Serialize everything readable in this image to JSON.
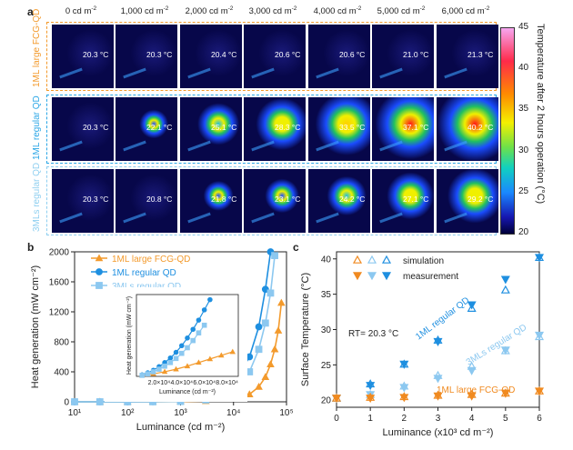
{
  "panel_a": {
    "label": "a",
    "columns": [
      "0 cd m",
      "1,000 cd m",
      "2,000 cd m",
      "3,000 cd m",
      "4,000 cd m",
      "5,000 cd m",
      "6,000 cd m"
    ],
    "column_unit_exp": "-2",
    "rows": [
      {
        "label": "1ML large FCG-QD",
        "color": "#f39a2c",
        "temps": [
          "20.3 °C",
          "20.3 °C",
          "20.4 °C",
          "20.6 °C",
          "20.6 °C",
          "21.0 °C",
          "21.3 °C"
        ]
      },
      {
        "label": "1ML regular QD",
        "color": "#2aa6e6",
        "temps": [
          "20.3 °C",
          "22.1 °C",
          "25.1 °C",
          "28.3 °C",
          "33.5 °C",
          "37.1 °C",
          "40.2 °C"
        ]
      },
      {
        "label": "3MLs regular QD",
        "color": "#8fcff0",
        "temps": [
          "20.3 °C",
          "20.8 °C",
          "21.8 °C",
          "23.1 °C",
          "24.2 °C",
          "27.1 °C",
          "29.2 °C"
        ]
      }
    ],
    "colorbar": {
      "ticks": [
        "45",
        "40",
        "35",
        "30",
        "25",
        "20"
      ],
      "label": "Temperature after 2 hours operation (°C)"
    }
  },
  "panel_b": {
    "label": "b",
    "legend": [
      "1ML   large FCG-QD",
      "1ML   regular QD",
      "3MLs regular QD"
    ],
    "inset": {
      "xticks": [
        "2.0×10⁴",
        "4.0×10⁴",
        "6.0×10⁴",
        "8.0×10⁴"
      ],
      "xlabel": "Luminance (cd m⁻²)",
      "ylabel": "Heat generation (mW cm⁻²)"
    }
  },
  "panel_c": {
    "label": "c",
    "legend": [
      "simulation",
      "measurement"
    ],
    "annotation": "RT= 20.3 °C",
    "series_labels": [
      "1ML regular QD",
      "3MLs regular QD",
      "1ML large FCG-QD"
    ]
  },
  "chart_data": [
    {
      "type": "line",
      "xlabel": "Luminance (cd m⁻²)",
      "ylabel": "Heat generation (mW cm⁻²)",
      "xscale": "log",
      "xlim": [
        10,
        100000
      ],
      "ylim": [
        0,
        2000
      ],
      "xticks": [
        "10¹",
        "10²",
        "10³",
        "10⁴",
        "10⁵"
      ],
      "yticks": [
        "0",
        "400",
        "800",
        "1200",
        "1600",
        "2000"
      ],
      "legend_position": "top-left",
      "series": [
        {
          "name": "1ML   large FCG-QD",
          "color": "#f39a2c",
          "marker": "triangle",
          "x": [
            10,
            30,
            100,
            300,
            1000,
            3000,
            10000,
            20000,
            30000,
            40000,
            50000,
            60000,
            70000,
            80000
          ],
          "y": [
            0,
            0,
            0,
            1,
            3,
            10,
            40,
            100,
            200,
            330,
            500,
            700,
            950,
            1320
          ]
        },
        {
          "name": "1ML   regular QD",
          "color": "#1e8fe0",
          "marker": "circle",
          "x": [
            10,
            30,
            100,
            300,
            1000,
            3000,
            10000,
            20000,
            30000,
            40000,
            50000
          ],
          "y": [
            0,
            0,
            0,
            2,
            8,
            40,
            250,
            600,
            1000,
            1500,
            2000
          ]
        },
        {
          "name": "3MLs regular QD",
          "color": "#8cc8f0",
          "marker": "square",
          "x": [
            10,
            30,
            100,
            300,
            1000,
            3000,
            10000,
            20000,
            30000,
            40000,
            50000,
            60000
          ],
          "y": [
            0,
            0,
            0,
            1,
            5,
            25,
            150,
            400,
            700,
            1050,
            1450,
            1950
          ]
        }
      ]
    },
    {
      "type": "line",
      "role": "inset",
      "xlabel": "Luminance (cd m⁻²)",
      "ylabel": "Heat generation (mW cm⁻²)",
      "xlim": [
        0,
        90000
      ],
      "series": [
        {
          "color": "#f39a2c",
          "x": [
            5000,
            15000,
            25000,
            35000,
            45000,
            55000,
            65000,
            75000,
            85000
          ],
          "y": [
            20,
            50,
            90,
            140,
            200,
            270,
            340,
            410,
            480
          ]
        },
        {
          "color": "#1e8fe0",
          "x": [
            5000,
            10000,
            15000,
            20000,
            25000,
            30000,
            35000,
            40000,
            45000,
            50000,
            55000,
            60000,
            65000
          ],
          "y": [
            30,
            70,
            120,
            190,
            270,
            360,
            470,
            600,
            750,
            920,
            1100,
            1300,
            1500
          ]
        },
        {
          "color": "#8cc8f0",
          "x": [
            5000,
            10000,
            15000,
            20000,
            25000,
            30000,
            35000,
            40000,
            45000,
            50000,
            55000,
            60000
          ],
          "y": [
            20,
            50,
            90,
            140,
            200,
            270,
            350,
            450,
            560,
            700,
            850,
            1000
          ]
        }
      ]
    },
    {
      "type": "scatter",
      "xlabel": "Luminance (x10³ cd m⁻²)",
      "ylabel": "Surface Temperature (°C)",
      "xlim": [
        0,
        6
      ],
      "ylim": [
        19,
        41
      ],
      "xticks": [
        "0",
        "1",
        "2",
        "3",
        "4",
        "5",
        "6"
      ],
      "yticks": [
        "20",
        "25",
        "30",
        "35",
        "40"
      ],
      "x": [
        0,
        1,
        2,
        3,
        4,
        5,
        6
      ],
      "series": [
        {
          "name": "1ML regular QD",
          "color": "#1e8fe0",
          "simulation": [
            20.3,
            22.3,
            25.1,
            28.5,
            33.0,
            35.6,
            40.2
          ],
          "measurement": [
            20.3,
            22.1,
            25.1,
            28.3,
            33.5,
            37.1,
            40.2
          ]
        },
        {
          "name": "3MLs regular QD",
          "color": "#8cc8f0",
          "simulation": [
            20.3,
            20.8,
            22.0,
            23.5,
            24.8,
            27.0,
            29.0
          ],
          "measurement": [
            20.3,
            20.8,
            21.8,
            23.1,
            24.2,
            27.1,
            29.2
          ]
        },
        {
          "name": "1ML large FCG-QD",
          "color": "#f08a20",
          "simulation": [
            20.3,
            20.4,
            20.5,
            20.7,
            20.8,
            21.0,
            21.3
          ],
          "measurement": [
            20.3,
            20.3,
            20.4,
            20.6,
            20.6,
            21.0,
            21.3
          ]
        }
      ]
    }
  ]
}
